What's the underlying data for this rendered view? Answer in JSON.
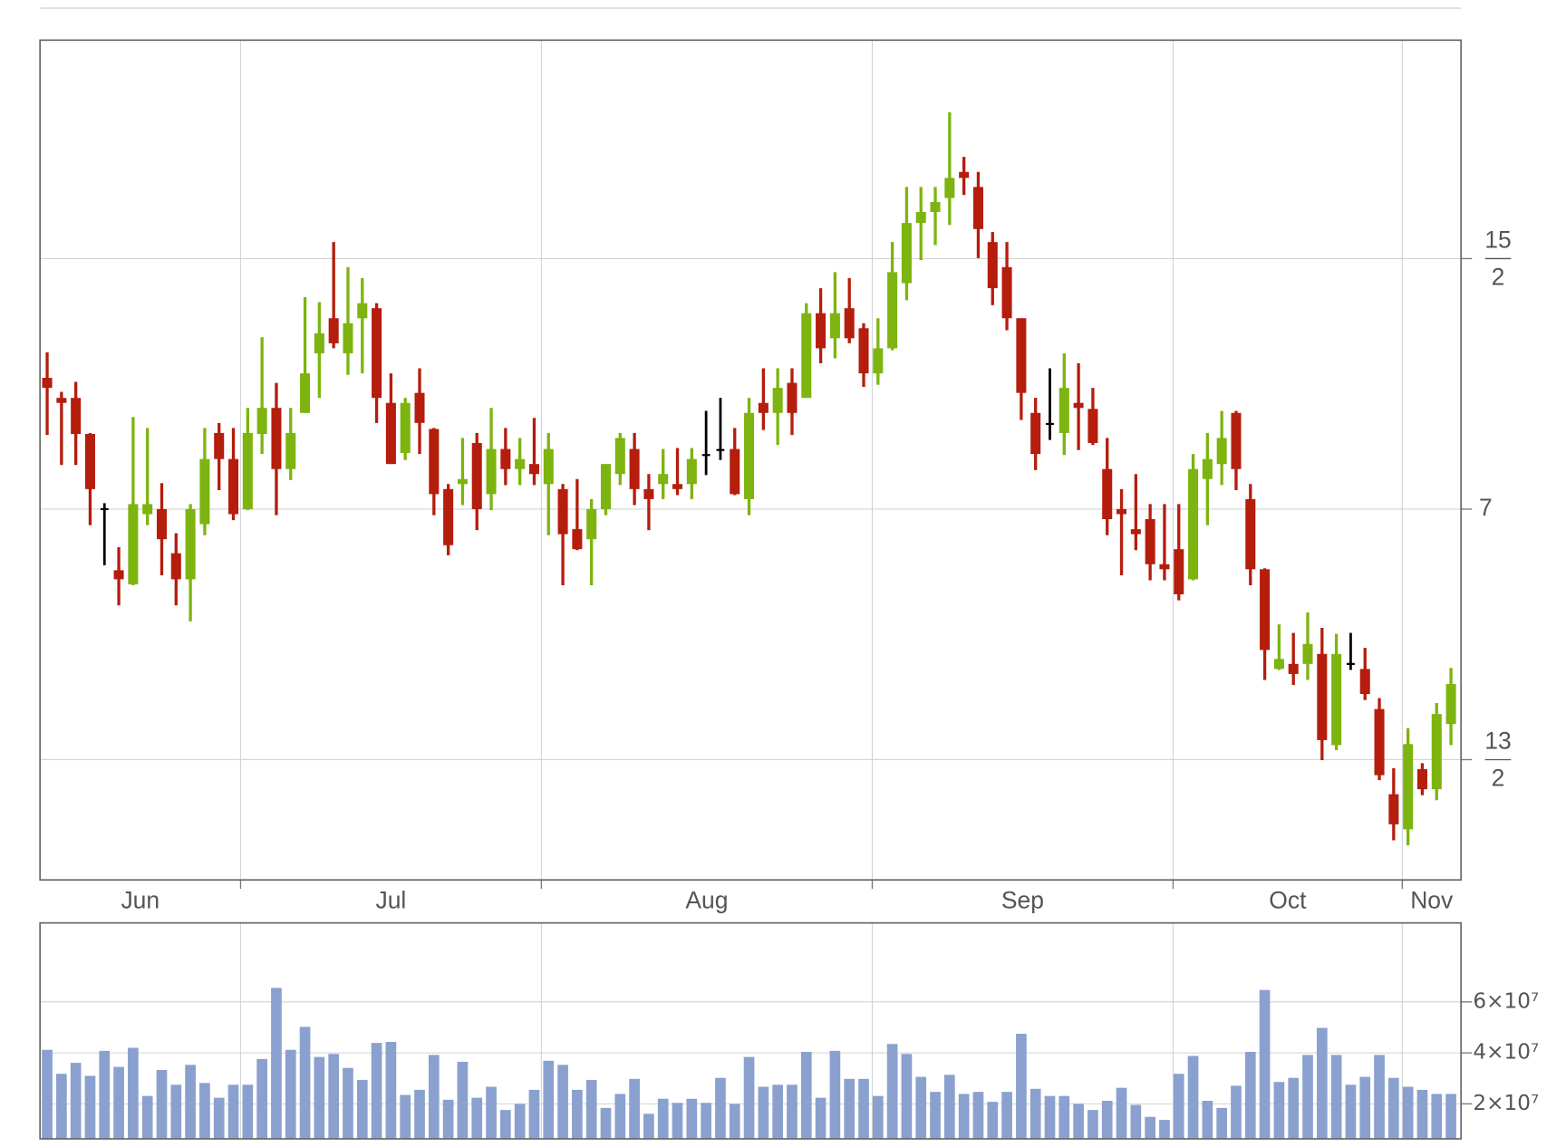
{
  "chart_data": [
    {
      "type": "candlestick",
      "xlim": [
        -0.5,
        98.7
      ],
      "xticks": [
        13.5,
        34.5,
        57.6,
        78.6,
        94.6
      ],
      "month_labels": [
        "Jun",
        "Jul",
        "Aug",
        "Sep",
        "Oct",
        "Nov"
      ],
      "ylim": [
        6.26,
        7.936
      ],
      "yticks": [
        {
          "value": 6.5,
          "label": "13/2"
        },
        7,
        {
          "value": 7.5,
          "label": "15/2"
        }
      ],
      "grid": true,
      "colors": {
        "up": "#7db40f",
        "down": "#b51d0c",
        "flat": "#000000"
      },
      "open": [
        7.262,
        7.222,
        7.222,
        7.15,
        7.0,
        6.878,
        6.85,
        6.99,
        7.0,
        6.912,
        6.86,
        6.97,
        7.152,
        7.1,
        7.0,
        7.15,
        7.202,
        7.08,
        7.192,
        7.311,
        7.381,
        7.311,
        7.381,
        7.401,
        7.212,
        7.112,
        7.232,
        7.16,
        7.04,
        7.05,
        7.132,
        7.03,
        7.12,
        7.08,
        7.09,
        7.05,
        7.04,
        6.96,
        6.94,
        7.0,
        7.07,
        7.12,
        7.04,
        7.05,
        7.05,
        7.05,
        7.108,
        7.118,
        7.12,
        7.02,
        7.212,
        7.192,
        7.252,
        7.222,
        7.391,
        7.341,
        7.401,
        7.361,
        7.271,
        7.321,
        7.451,
        7.571,
        7.593,
        7.621,
        7.673,
        7.643,
        7.533,
        7.483,
        7.381,
        7.192,
        7.17,
        7.152,
        7.212,
        7.2,
        7.08,
        7.0,
        6.96,
        6.98,
        6.89,
        6.92,
        6.86,
        7.06,
        7.09,
        7.192,
        7.02,
        6.88,
        6.681,
        6.691,
        6.691,
        6.711,
        6.529,
        6.691,
        6.681,
        6.601,
        6.431,
        6.361,
        6.481,
        6.441,
        6.571
      ],
      "high": [
        7.313,
        7.234,
        7.254,
        7.152,
        7.012,
        6.924,
        7.184,
        7.162,
        7.052,
        6.952,
        7.01,
        7.162,
        7.172,
        7.162,
        7.202,
        7.343,
        7.252,
        7.202,
        7.423,
        7.413,
        7.533,
        7.483,
        7.461,
        7.411,
        7.271,
        7.222,
        7.281,
        7.162,
        7.05,
        7.142,
        7.152,
        7.202,
        7.162,
        7.142,
        7.182,
        7.152,
        7.05,
        7.06,
        7.02,
        7.09,
        7.152,
        7.152,
        7.07,
        7.12,
        7.122,
        7.122,
        7.196,
        7.222,
        7.162,
        7.222,
        7.281,
        7.281,
        7.281,
        7.411,
        7.441,
        7.473,
        7.461,
        7.371,
        7.381,
        7.533,
        7.643,
        7.643,
        7.643,
        7.792,
        7.703,
        7.673,
        7.553,
        7.533,
        7.381,
        7.222,
        7.281,
        7.311,
        7.291,
        7.242,
        7.142,
        7.04,
        7.07,
        7.01,
        7.01,
        7.01,
        7.11,
        7.152,
        7.196,
        7.196,
        7.05,
        6.882,
        6.77,
        6.753,
        6.794,
        6.763,
        6.751,
        6.753,
        6.723,
        6.623,
        6.483,
        6.563,
        6.493,
        6.613,
        6.683
      ],
      "low": [
        7.148,
        7.088,
        7.088,
        6.968,
        6.888,
        6.808,
        6.848,
        6.968,
        6.868,
        6.808,
        6.776,
        6.948,
        7.038,
        6.978,
        6.998,
        7.11,
        6.988,
        7.058,
        7.192,
        7.222,
        7.321,
        7.268,
        7.271,
        7.172,
        7.09,
        7.098,
        7.11,
        6.988,
        6.908,
        7.008,
        6.958,
        6.998,
        7.048,
        7.048,
        7.048,
        6.948,
        6.848,
        6.918,
        6.848,
        6.988,
        7.048,
        7.008,
        6.958,
        7.02,
        7.028,
        7.02,
        7.068,
        7.098,
        7.028,
        6.988,
        7.158,
        7.128,
        7.148,
        7.222,
        7.291,
        7.301,
        7.331,
        7.244,
        7.248,
        7.317,
        7.417,
        7.497,
        7.527,
        7.567,
        7.627,
        7.501,
        7.407,
        7.357,
        7.178,
        7.078,
        7.138,
        7.108,
        7.118,
        7.128,
        6.948,
        6.868,
        6.918,
        6.858,
        6.858,
        6.818,
        6.858,
        6.968,
        7.048,
        7.038,
        6.848,
        6.659,
        6.679,
        6.649,
        6.659,
        6.499,
        6.519,
        6.679,
        6.619,
        6.459,
        6.339,
        6.329,
        6.429,
        6.419,
        6.529
      ],
      "close": [
        7.242,
        7.212,
        7.15,
        7.04,
        7.0,
        6.86,
        7.01,
        7.01,
        6.94,
        6.86,
        7.0,
        7.1,
        7.1,
        6.99,
        7.152,
        7.202,
        7.08,
        7.152,
        7.271,
        7.351,
        7.331,
        7.371,
        7.411,
        7.222,
        7.09,
        7.212,
        7.172,
        7.03,
        6.928,
        7.06,
        7.0,
        7.12,
        7.08,
        7.1,
        7.07,
        7.12,
        6.95,
        6.92,
        7.0,
        7.09,
        7.142,
        7.04,
        7.02,
        7.07,
        7.04,
        7.1,
        7.108,
        7.118,
        7.03,
        7.192,
        7.192,
        7.242,
        7.192,
        7.391,
        7.321,
        7.391,
        7.341,
        7.271,
        7.321,
        7.473,
        7.571,
        7.593,
        7.613,
        7.661,
        7.661,
        7.559,
        7.441,
        7.381,
        7.232,
        7.11,
        7.17,
        7.242,
        7.202,
        7.132,
        6.98,
        6.99,
        6.95,
        6.89,
        6.88,
        6.83,
        7.08,
        7.1,
        7.142,
        7.08,
        6.88,
        6.719,
        6.701,
        6.671,
        6.731,
        6.539,
        6.711,
        6.691,
        6.631,
        6.469,
        6.371,
        6.531,
        6.441,
        6.591,
        6.651
      ]
    },
    {
      "type": "bar",
      "xlim": [
        -0.5,
        98.7
      ],
      "xticks": [
        13.5,
        34.5,
        57.6,
        78.6,
        94.6
      ],
      "ylim": [
        6270000,
        91000000
      ],
      "yticks": [
        {
          "value": 20000000,
          "label": "2×10⁷"
        },
        {
          "value": 40000000,
          "label": "4×10⁷"
        },
        {
          "value": 60000000,
          "label": "6×10⁷"
        }
      ],
      "grid": true,
      "color": "#8aa1cf",
      "values": [
        41200000,
        31800000,
        36100000,
        31000000,
        40800000,
        34500000,
        42000000,
        23100000,
        33300000,
        27500000,
        35300000,
        28200000,
        22400000,
        27500000,
        27500000,
        37600000,
        65500000,
        41200000,
        50200000,
        38400000,
        39600000,
        34100000,
        29400000,
        43900000,
        44300000,
        23500000,
        25500000,
        39200000,
        21600000,
        36500000,
        22400000,
        26700000,
        17600000,
        20000000,
        25500000,
        36900000,
        35300000,
        25500000,
        29400000,
        18400000,
        23900000,
        29800000,
        16100000,
        22000000,
        20400000,
        22000000,
        20400000,
        30200000,
        20000000,
        38400000,
        26700000,
        27500000,
        27500000,
        40400000,
        22400000,
        40800000,
        29800000,
        29800000,
        23100000,
        43500000,
        39600000,
        30600000,
        24700000,
        31400000,
        23900000,
        24700000,
        20800000,
        24700000,
        47500000,
        25900000,
        23100000,
        23100000,
        20000000,
        17600000,
        21200000,
        26300000,
        19600000,
        14900000,
        13700000,
        31800000,
        38800000,
        21200000,
        18400000,
        27100000,
        40400000,
        64700000,
        28600000,
        30200000,
        39200000,
        49800000,
        39200000,
        27500000,
        30600000,
        39200000,
        30200000,
        26700000,
        25500000,
        23900000,
        23900000
      ]
    }
  ]
}
